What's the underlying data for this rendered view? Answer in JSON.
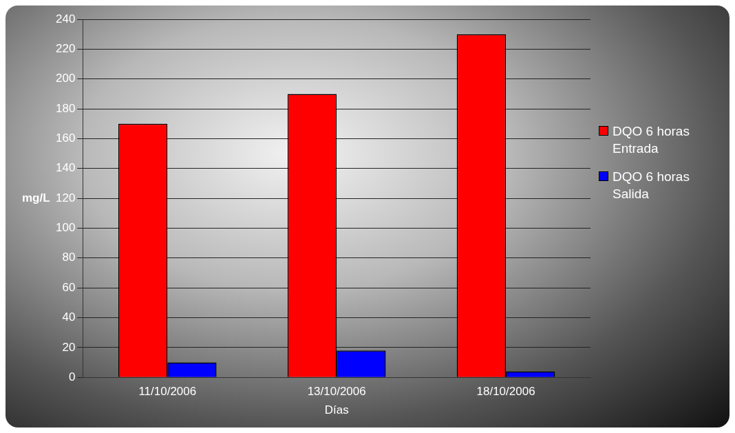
{
  "chart_data": {
    "type": "bar",
    "xlabel": "Días",
    "ylabel": "mg/L",
    "categories": [
      "11/10/2006",
      "13/10/2006",
      "18/10/2006"
    ],
    "series": [
      {
        "name": "DQO 6 horas Entrada",
        "color": "#ff0000",
        "values": [
          170,
          190,
          230
        ]
      },
      {
        "name": "DQO 6 horas Salida",
        "color": "#0000ff",
        "values": [
          10,
          18,
          4
        ]
      }
    ],
    "ylim": [
      0,
      240
    ],
    "yticks": [
      0,
      20,
      40,
      60,
      80,
      100,
      120,
      140,
      160,
      180,
      200,
      220,
      240
    ],
    "grid": "y",
    "legend": "right"
  }
}
